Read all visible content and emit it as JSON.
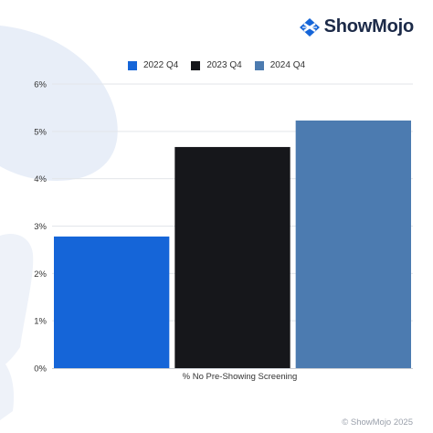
{
  "brand": {
    "name": "ShowMojo",
    "logo_icon": "showmojo-logo-icon"
  },
  "legend": [
    {
      "label": "2022 Q4",
      "color": "#1565d8"
    },
    {
      "label": "2023 Q4",
      "color": "#16171b"
    },
    {
      "label": "2024 Q4",
      "color": "#4c7bb0"
    }
  ],
  "chart_data": {
    "type": "bar",
    "categories": [
      "% No Pre-Showing Screening"
    ],
    "series": [
      {
        "name": "2022 Q4",
        "values": [
          2.78
        ],
        "color": "#1565d8"
      },
      {
        "name": "2023 Q4",
        "values": [
          4.67
        ],
        "color": "#16171b"
      },
      {
        "name": "2024 Q4",
        "values": [
          5.23
        ],
        "color": "#4c7bb0"
      }
    ],
    "yticks": [
      "0%",
      "1%",
      "2%",
      "3%",
      "4%",
      "5%",
      "6%"
    ],
    "ylim": [
      0,
      6
    ],
    "grid": true,
    "legend_position": "top-center"
  },
  "copyright": "© ShowMojo 2025"
}
